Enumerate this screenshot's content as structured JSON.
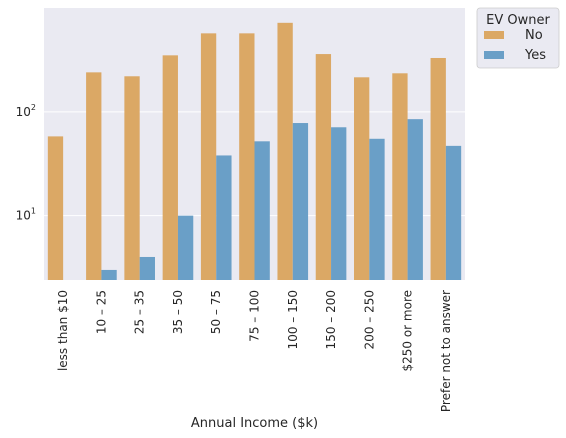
{
  "chart_data": {
    "type": "bar",
    "xlabel": "Annual Income ($k)",
    "ylabel": "",
    "yscale": "log",
    "ylim": [
      2.4,
      1000
    ],
    "yticks": [
      {
        "value": 10,
        "base": "10",
        "exp": "1"
      },
      {
        "value": 100,
        "base": "10",
        "exp": "2"
      }
    ],
    "grid": true,
    "legend": {
      "title": "EV Owner",
      "position": "outside-top-right"
    },
    "categories": [
      "less than $10",
      "10 – 25",
      "25 – 35",
      "35 – 50",
      "50 – 75",
      "75 – 100",
      "100 – 150",
      "150 – 200",
      "200 – 250",
      "$250 or more",
      "Prefer not to answer"
    ],
    "series": [
      {
        "name": "No",
        "color": "#dba865",
        "values": [
          58,
          240,
          220,
          350,
          570,
          570,
          720,
          360,
          215,
          235,
          330
        ]
      },
      {
        "name": "Yes",
        "color": "#6a9fc7",
        "values": [
          null,
          3,
          4,
          10,
          38,
          52,
          78,
          71,
          55,
          85,
          47
        ]
      }
    ]
  }
}
